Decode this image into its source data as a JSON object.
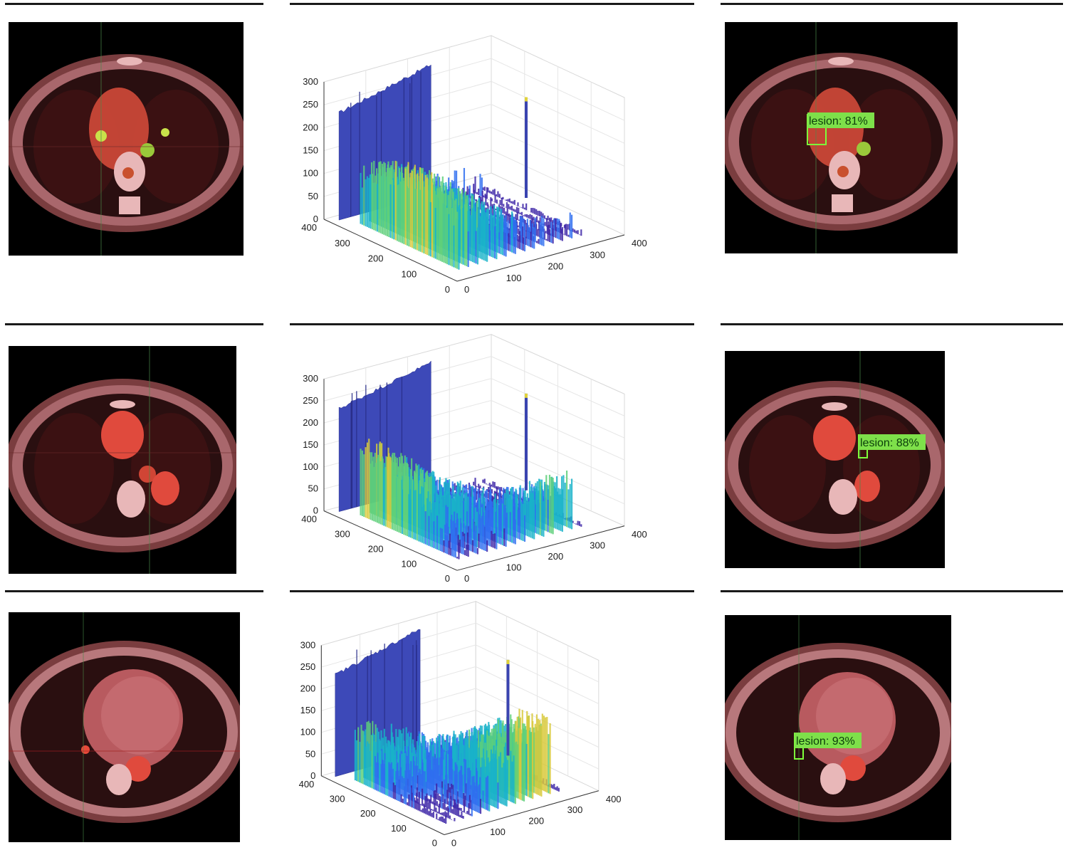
{
  "figure": {
    "rows": [
      {
        "id": "r1",
        "detection": {
          "label": "lesion",
          "confidence": "81%"
        }
      },
      {
        "id": "r2",
        "detection": {
          "label": "lesion",
          "confidence": "88%"
        }
      },
      {
        "id": "r3",
        "detection": {
          "label": "lesion",
          "confidence": "93%"
        }
      }
    ]
  },
  "chart_data": [
    {
      "type": "surface3d",
      "row": 1,
      "title": "",
      "z_ticks": [
        "0",
        "50",
        "100",
        "150",
        "200",
        "250",
        "300"
      ],
      "y_ticks": [
        "400",
        "300",
        "200",
        "100",
        "0"
      ],
      "x_ticks": [
        "0",
        "100",
        "200",
        "300",
        "400"
      ],
      "zlim": [
        0,
        300
      ],
      "xlim": [
        0,
        400
      ],
      "ylim": [
        0,
        400
      ],
      "colormap": [
        "#3e26a8",
        "#2f6ef0",
        "#19b3c9",
        "#5ed07a",
        "#d9c93a",
        "#f9fb0e"
      ]
    },
    {
      "type": "surface3d",
      "row": 2,
      "title": "",
      "z_ticks": [
        "0",
        "50",
        "100",
        "150",
        "200",
        "250",
        "300"
      ],
      "y_ticks": [
        "400",
        "300",
        "200",
        "100",
        "0"
      ],
      "x_ticks": [
        "0",
        "100",
        "200",
        "300",
        "400"
      ],
      "zlim": [
        0,
        300
      ],
      "xlim": [
        0,
        400
      ],
      "ylim": [
        0,
        400
      ],
      "colormap": [
        "#3e26a8",
        "#2f6ef0",
        "#19b3c9",
        "#5ed07a",
        "#d9c93a",
        "#f9fb0e"
      ]
    },
    {
      "type": "surface3d",
      "row": 3,
      "title": "",
      "z_ticks": [
        "0",
        "50",
        "100",
        "150",
        "200",
        "250",
        "300"
      ],
      "y_ticks": [
        "400",
        "300",
        "200",
        "100",
        "0"
      ],
      "x_ticks": [
        "0",
        "100",
        "200",
        "300",
        "400"
      ],
      "zlim": [
        0,
        300
      ],
      "xlim": [
        0,
        400
      ],
      "ylim": [
        0,
        400
      ],
      "colormap": [
        "#3e26a8",
        "#2f6ef0",
        "#19b3c9",
        "#5ed07a",
        "#d9c93a",
        "#f9fb0e"
      ]
    }
  ]
}
